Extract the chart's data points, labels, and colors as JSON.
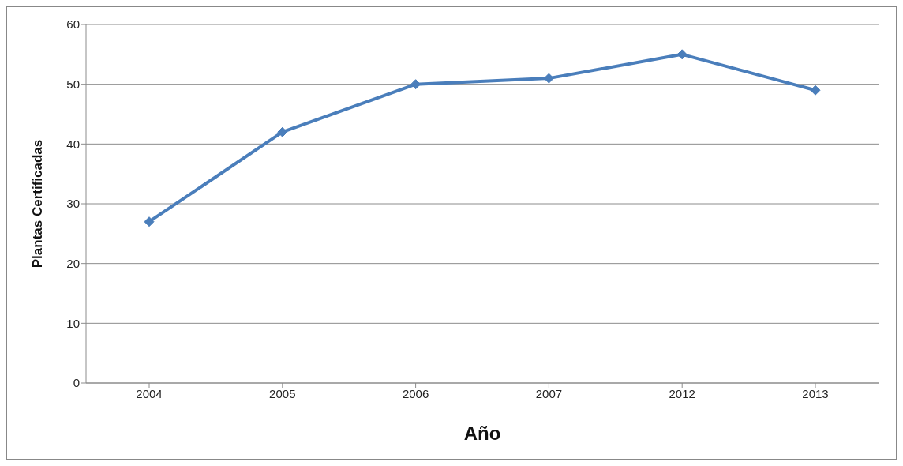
{
  "chart_data": {
    "type": "line",
    "xlabel": "Año",
    "ylabel": "Plantas Certificadas",
    "categories": [
      "2004",
      "2005",
      "2006",
      "2007",
      "2012",
      "2013"
    ],
    "series": [
      {
        "color": "#4a7ebb",
        "values": [
          27,
          42,
          50,
          51,
          55,
          49
        ]
      }
    ],
    "ylim": [
      0,
      60
    ],
    "yticks": [
      0,
      10,
      20,
      30,
      40,
      50,
      60
    ],
    "grid": "y",
    "legend": false,
    "marker": "diamond",
    "line_style": "solid"
  }
}
